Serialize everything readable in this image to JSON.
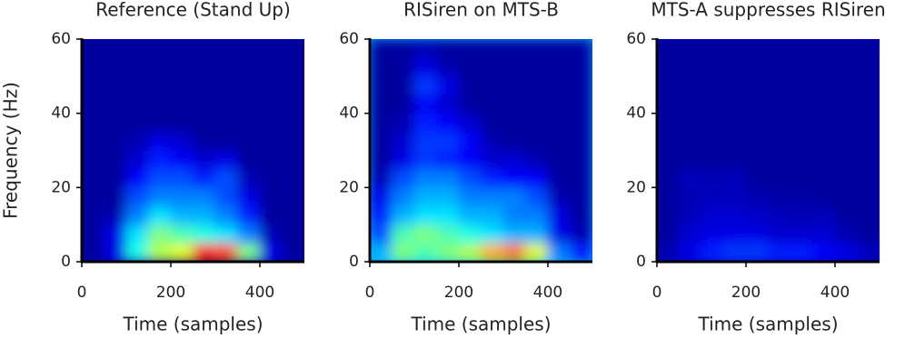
{
  "chart_data": [
    {
      "type": "heatmap",
      "title": "Reference (Stand Up)",
      "xlabel": "Time (samples)",
      "ylabel": "Frequency (Hz)",
      "xlim": [
        0,
        500
      ],
      "ylim": [
        0,
        60
      ],
      "xticks": [
        0,
        200,
        400
      ],
      "yticks": [
        0,
        20,
        40,
        60
      ],
      "colormap": "jet",
      "xbins": [
        0,
        50,
        100,
        150,
        200,
        250,
        300,
        350,
        400,
        450,
        500
      ],
      "ybins": [
        0,
        5,
        10,
        15,
        20,
        25,
        30,
        35,
        40,
        45,
        50,
        55,
        60
      ],
      "z": [
        [
          0.03,
          0.1,
          0.4,
          0.55,
          0.6,
          0.85,
          0.8,
          0.5,
          0.1,
          0.03
        ],
        [
          0.03,
          0.1,
          0.35,
          0.5,
          0.45,
          0.4,
          0.35,
          0.25,
          0.05,
          0.03
        ],
        [
          0.03,
          0.05,
          0.25,
          0.35,
          0.3,
          0.3,
          0.25,
          0.15,
          0.03,
          0.03
        ],
        [
          0.03,
          0.03,
          0.2,
          0.25,
          0.25,
          0.25,
          0.2,
          0.1,
          0.03,
          0.03
        ],
        [
          0.03,
          0.03,
          0.12,
          0.2,
          0.2,
          0.15,
          0.2,
          0.05,
          0.03,
          0.03
        ],
        [
          0.03,
          0.03,
          0.08,
          0.15,
          0.12,
          0.08,
          0.1,
          0.03,
          0.03,
          0.03
        ],
        [
          0.03,
          0.03,
          0.05,
          0.1,
          0.08,
          0.03,
          0.03,
          0.03,
          0.03,
          0.03
        ],
        [
          0.03,
          0.03,
          0.03,
          0.03,
          0.03,
          0.03,
          0.03,
          0.03,
          0.03,
          0.03
        ],
        [
          0.03,
          0.03,
          0.03,
          0.03,
          0.03,
          0.03,
          0.03,
          0.03,
          0.03,
          0.03
        ],
        [
          0.03,
          0.03,
          0.03,
          0.03,
          0.03,
          0.03,
          0.03,
          0.03,
          0.03,
          0.03
        ],
        [
          0.03,
          0.03,
          0.03,
          0.03,
          0.03,
          0.03,
          0.03,
          0.03,
          0.03,
          0.03
        ],
        [
          0.03,
          0.03,
          0.03,
          0.03,
          0.03,
          0.03,
          0.03,
          0.03,
          0.03,
          0.03
        ]
      ]
    },
    {
      "type": "heatmap",
      "title": "RISiren on MTS-B",
      "xlabel": "Time (samples)",
      "xlim": [
        0,
        500
      ],
      "ylim": [
        0,
        60
      ],
      "xticks": [
        0,
        200,
        400
      ],
      "yticks": [
        0,
        20,
        40,
        60
      ],
      "colormap": "jet",
      "xbins": [
        0,
        50,
        100,
        150,
        200,
        250,
        300,
        350,
        400,
        450,
        500
      ],
      "ybins": [
        0,
        5,
        10,
        15,
        20,
        25,
        30,
        35,
        40,
        45,
        50,
        55,
        60
      ],
      "z": [
        [
          0.3,
          0.5,
          0.45,
          0.5,
          0.55,
          0.7,
          0.75,
          0.6,
          0.25,
          0.15
        ],
        [
          0.2,
          0.45,
          0.5,
          0.45,
          0.4,
          0.35,
          0.3,
          0.3,
          0.1,
          0.05
        ],
        [
          0.15,
          0.3,
          0.35,
          0.35,
          0.3,
          0.3,
          0.25,
          0.25,
          0.1,
          0.03
        ],
        [
          0.1,
          0.25,
          0.3,
          0.3,
          0.25,
          0.25,
          0.25,
          0.2,
          0.05,
          0.03
        ],
        [
          0.05,
          0.2,
          0.25,
          0.25,
          0.2,
          0.15,
          0.12,
          0.12,
          0.03,
          0.03
        ],
        [
          0.03,
          0.1,
          0.18,
          0.15,
          0.12,
          0.08,
          0.08,
          0.05,
          0.03,
          0.03
        ],
        [
          0.03,
          0.08,
          0.18,
          0.18,
          0.12,
          0.05,
          0.03,
          0.03,
          0.03,
          0.03
        ],
        [
          0.03,
          0.05,
          0.15,
          0.12,
          0.08,
          0.03,
          0.03,
          0.03,
          0.03,
          0.03
        ],
        [
          0.03,
          0.03,
          0.12,
          0.08,
          0.03,
          0.03,
          0.03,
          0.03,
          0.03,
          0.03
        ],
        [
          0.03,
          0.03,
          0.18,
          0.1,
          0.03,
          0.03,
          0.03,
          0.03,
          0.03,
          0.03
        ],
        [
          0.03,
          0.03,
          0.1,
          0.05,
          0.03,
          0.03,
          0.03,
          0.03,
          0.03,
          0.03
        ],
        [
          0.03,
          0.03,
          0.05,
          0.03,
          0.03,
          0.03,
          0.03,
          0.03,
          0.03,
          0.03
        ]
      ]
    },
    {
      "type": "heatmap",
      "title": "MTS-A suppresses RISiren",
      "xlabel": "Time (samples)",
      "xlim": [
        0,
        500
      ],
      "ylim": [
        0,
        60
      ],
      "xticks": [
        0,
        200,
        400
      ],
      "yticks": [
        0,
        20,
        40,
        60
      ],
      "colormap": "jet",
      "xbins": [
        0,
        50,
        100,
        150,
        200,
        250,
        300,
        350,
        400,
        450,
        500
      ],
      "ybins": [
        0,
        5,
        10,
        15,
        20,
        25,
        30,
        35,
        40,
        45,
        50,
        55,
        60
      ],
      "z": [
        [
          0.05,
          0.1,
          0.15,
          0.18,
          0.18,
          0.15,
          0.15,
          0.12,
          0.1,
          0.06
        ],
        [
          0.03,
          0.08,
          0.1,
          0.1,
          0.1,
          0.08,
          0.08,
          0.08,
          0.05,
          0.03
        ],
        [
          0.03,
          0.06,
          0.08,
          0.08,
          0.07,
          0.06,
          0.05,
          0.06,
          0.03,
          0.03
        ],
        [
          0.03,
          0.05,
          0.06,
          0.06,
          0.05,
          0.04,
          0.04,
          0.03,
          0.03,
          0.03
        ],
        [
          0.03,
          0.06,
          0.05,
          0.06,
          0.03,
          0.03,
          0.03,
          0.03,
          0.03,
          0.03
        ],
        [
          0.03,
          0.03,
          0.03,
          0.03,
          0.03,
          0.03,
          0.03,
          0.03,
          0.03,
          0.03
        ],
        [
          0.03,
          0.03,
          0.03,
          0.03,
          0.03,
          0.03,
          0.03,
          0.03,
          0.03,
          0.03
        ],
        [
          0.03,
          0.03,
          0.03,
          0.03,
          0.03,
          0.03,
          0.03,
          0.03,
          0.03,
          0.03
        ],
        [
          0.03,
          0.03,
          0.03,
          0.03,
          0.03,
          0.03,
          0.03,
          0.03,
          0.03,
          0.03
        ],
        [
          0.03,
          0.03,
          0.03,
          0.03,
          0.03,
          0.03,
          0.03,
          0.03,
          0.03,
          0.03
        ],
        [
          0.03,
          0.03,
          0.03,
          0.03,
          0.03,
          0.03,
          0.03,
          0.03,
          0.03,
          0.03
        ],
        [
          0.03,
          0.03,
          0.03,
          0.03,
          0.03,
          0.03,
          0.03,
          0.03,
          0.03,
          0.03
        ]
      ]
    }
  ]
}
